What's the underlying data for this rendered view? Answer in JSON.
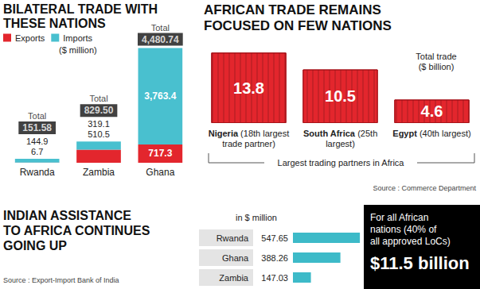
{
  "chart_data": [
    {
      "type": "bar",
      "title": "BILATERAL TRADE WITH THESE NATIONS",
      "unit": "($ million)",
      "categories": [
        "Rwanda",
        "Zambia",
        "Ghana"
      ],
      "stacked": true,
      "series": [
        {
          "name": "Exports",
          "color": "#e3262d",
          "values": [
            6.7,
            510.5,
            717.3
          ],
          "value_labels": [
            "6.7",
            "510.5",
            "717.3"
          ]
        },
        {
          "name": "Imports",
          "color": "#49c0cf",
          "values": [
            144.9,
            319.1,
            3763.4
          ],
          "value_labels": [
            "144.9",
            "319.1",
            "3,763.4"
          ]
        }
      ],
      "totals_title": "Total",
      "totals": [
        151.58,
        829.5,
        4480.74
      ],
      "total_labels": [
        "151.58",
        "829.50",
        "4,480.74"
      ],
      "data_labels": true,
      "legend": "top-left",
      "ylim": [
        0,
        4500
      ],
      "tick_labels": "x"
    },
    {
      "type": "bar",
      "title": "AFRICAN TRADE REMAINS FOCUSED ON FEW NATIONS",
      "unit": "Total trade ($ billion)",
      "categories": [
        "Nigeria",
        "South Africa",
        "Egypt"
      ],
      "notes": [
        "(18th largest trade partner)",
        "(25th largest)",
        "(40th largest)"
      ],
      "values": [
        13.8,
        10.5,
        4.6
      ],
      "color": "#e3262d",
      "data_labels": true,
      "group_label": "Largest trading partners in Africa",
      "ylim": [
        0,
        14
      ],
      "tick_labels": "x",
      "source": "Source : Commerce Department"
    },
    {
      "type": "bar",
      "orientation": "horizontal",
      "title": "INDIAN ASSISTANCE TO AFRICA CONTINUES GOING UP",
      "unit": "in $ million",
      "categories": [
        "Rwanda",
        "Ghana",
        "Zambia"
      ],
      "values": [
        547.65,
        388.26,
        147.03
      ],
      "color": "#3dbac8",
      "data_labels": true,
      "xlim": [
        0,
        560
      ],
      "tick_labels": "y",
      "source": "Source : Export-Import Bank of India",
      "callout": {
        "text": "For all African nations (40% of all approved LoCs)",
        "value_label": "$11.5 billion"
      }
    }
  ]
}
